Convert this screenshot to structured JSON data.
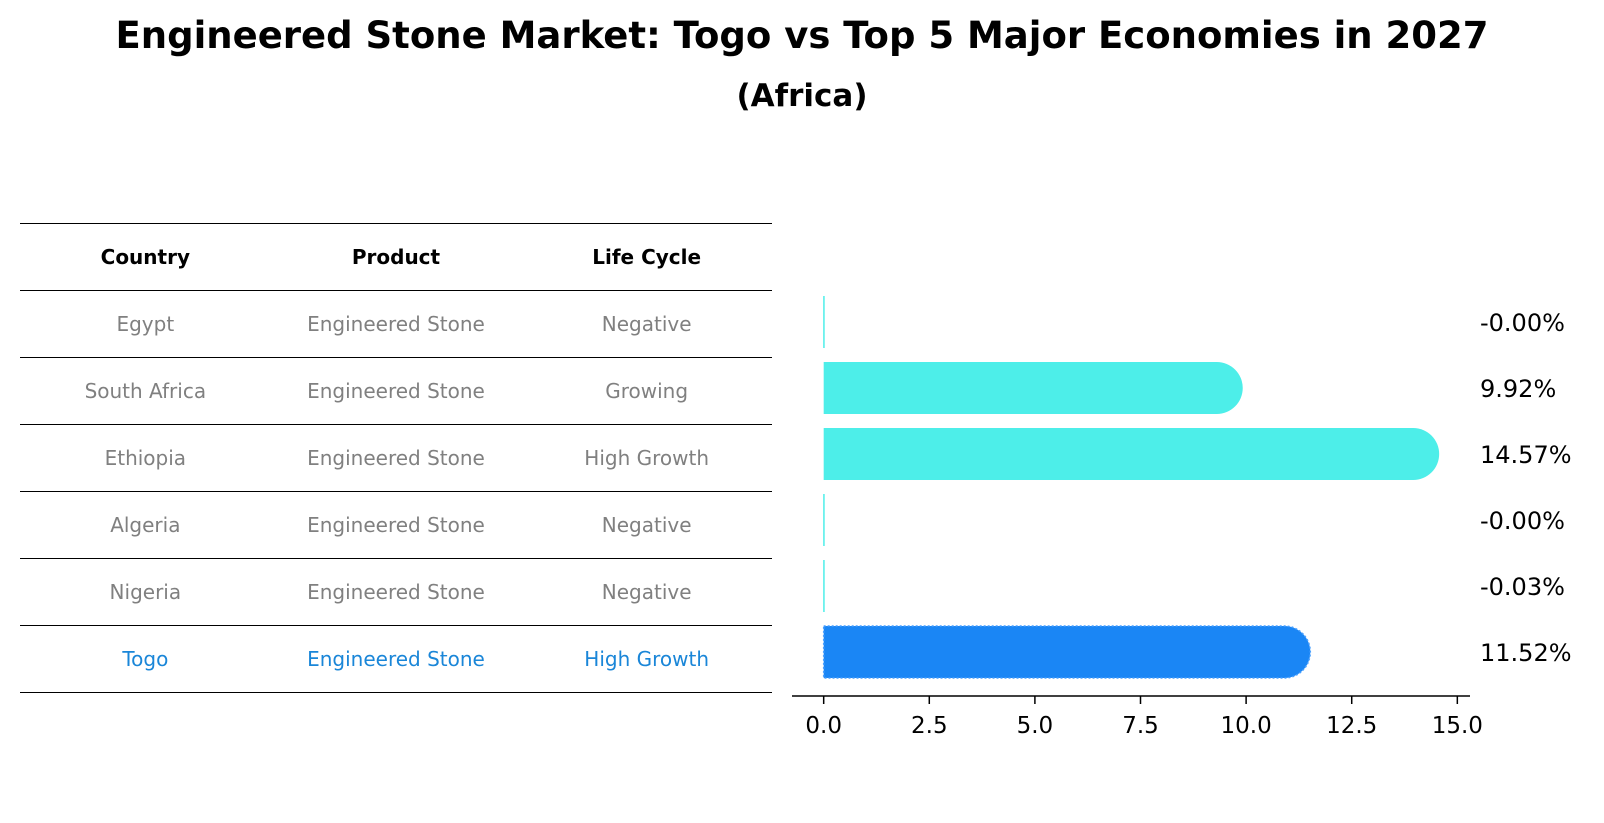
{
  "chart_data": {
    "type": "bar",
    "orientation": "horizontal",
    "title": "Engineered Stone Market: Togo vs Top 5 Major Economies in 2027",
    "subtitle": "(Africa)",
    "table": {
      "headers": [
        "Country",
        "Product",
        "Life Cycle"
      ],
      "rows": [
        {
          "country": "Egypt",
          "product": "Engineered Stone",
          "life_cycle": "Negative"
        },
        {
          "country": "South Africa",
          "product": "Engineered Stone",
          "life_cycle": "Growing"
        },
        {
          "country": "Ethiopia",
          "product": "Engineered Stone",
          "life_cycle": "High Growth"
        },
        {
          "country": "Algeria",
          "product": "Engineered Stone",
          "life_cycle": "Negative"
        },
        {
          "country": "Nigeria",
          "product": "Engineered Stone",
          "life_cycle": "Negative"
        },
        {
          "country": "Togo",
          "product": "Engineered Stone",
          "life_cycle": "High Growth",
          "highlight": true
        }
      ]
    },
    "categories": [
      "Egypt",
      "South Africa",
      "Ethiopia",
      "Algeria",
      "Nigeria",
      "Togo"
    ],
    "values": [
      -0.0,
      9.92,
      14.57,
      -0.0,
      -0.03,
      11.52
    ],
    "value_labels": [
      "-0.00%",
      "9.92%",
      "14.57%",
      "-0.00%",
      "-0.03%",
      "11.52%"
    ],
    "highlight_index": 5,
    "xlim": [
      -0.75,
      15.3
    ],
    "xticks": [
      0.0,
      2.5,
      5.0,
      7.5,
      10.0,
      12.5,
      15.0
    ],
    "xtick_labels": [
      "0.0",
      "2.5",
      "5.0",
      "7.5",
      "10.0",
      "12.5",
      "15.0"
    ],
    "colors": {
      "bar": "#4deee9",
      "highlight_bar": "#1a86f5",
      "highlight_text": "#1a86d8",
      "muted_text": "#808080"
    }
  }
}
